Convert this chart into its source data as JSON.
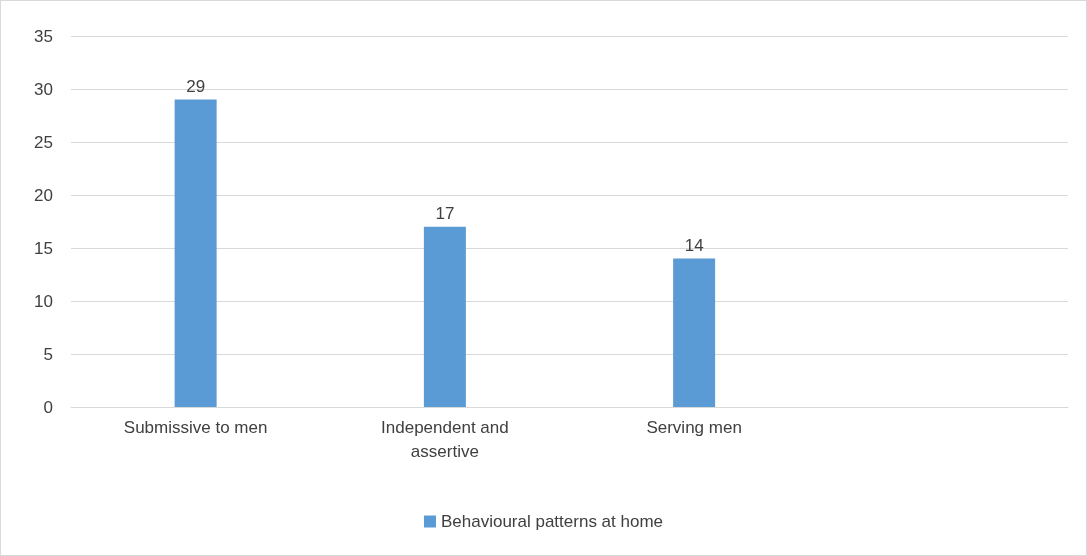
{
  "chart_data": {
    "type": "bar",
    "categories": [
      "Submissive to men",
      "Independent and\nassertive",
      "Serving men",
      null
    ],
    "series": [
      {
        "name": "Behavioural patterns at home",
        "color": "#5b9bd5",
        "values": [
          29,
          17,
          14,
          null
        ]
      }
    ],
    "ylim": [
      0,
      35
    ],
    "yticks": [
      0,
      5,
      10,
      15,
      20,
      25,
      30,
      35
    ],
    "grid": "y",
    "legend": "bottom",
    "data_labels": true
  }
}
